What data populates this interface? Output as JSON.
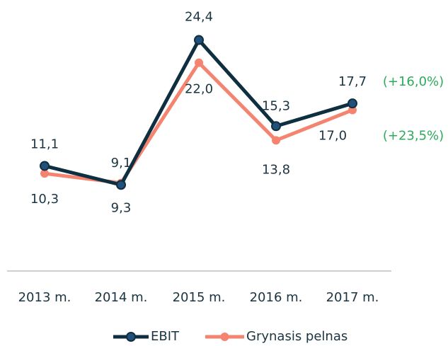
{
  "chart_data": {
    "type": "line",
    "categories": [
      "2013 m.",
      "2014 m.",
      "2015 m.",
      "2016 m.",
      "2017 m."
    ],
    "series": [
      {
        "name": "EBIT",
        "color": "#0e2f40",
        "values": [
          11.1,
          9.1,
          24.4,
          15.3,
          17.7
        ],
        "value_labels": [
          "11,1",
          "9,1",
          "24,4",
          "15,3",
          "17,7"
        ]
      },
      {
        "name": "Grynasis pelnas",
        "color": "#f4846f",
        "values": [
          10.3,
          9.3,
          22.0,
          13.8,
          17.0
        ],
        "value_labels": [
          "10,3",
          "9,3",
          "22,0",
          "13,8",
          "17,0"
        ]
      }
    ],
    "annotations": [
      "(+16,0%)",
      "(+23,5%)"
    ],
    "ylim": [
      0,
      28
    ],
    "legend": "bottom"
  }
}
